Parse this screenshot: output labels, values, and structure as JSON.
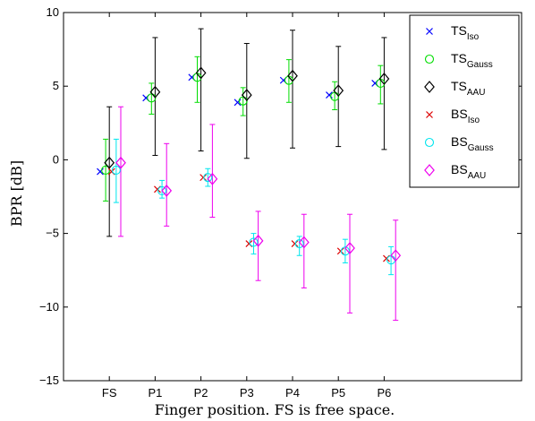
{
  "chart_data": {
    "type": "scatter",
    "title": "",
    "xlabel": "Finger position. FS is free space.",
    "ylabel": "BPR [dB]",
    "ylim": [
      -15,
      10
    ],
    "yticks": [
      -15,
      -10,
      -5,
      0,
      5,
      10
    ],
    "ytick_labels": [
      "−15",
      "−10",
      "−5",
      "0",
      "5",
      "10"
    ],
    "categories": [
      "FS",
      "P1",
      "P2",
      "P3",
      "P4",
      "P5",
      "P6"
    ],
    "xlim_categories_extra": 2,
    "grid": false,
    "legend_position": "top-right",
    "series": [
      {
        "name_main": "TS",
        "name_sub": "Iso",
        "color": "#0000ff",
        "marker": "x",
        "offset": -0.2,
        "values": [
          -0.8,
          4.2,
          5.6,
          3.9,
          5.4,
          4.4,
          5.2
        ],
        "errors": [
          null,
          null,
          null,
          null,
          null,
          null,
          null
        ]
      },
      {
        "name_main": "TS",
        "name_sub": "Gauss",
        "color": "#00dd00",
        "marker": "o",
        "offset": -0.08,
        "values": [
          -0.7,
          4.2,
          5.6,
          4.0,
          5.4,
          4.3,
          5.2
        ],
        "errors": [
          [
            -2.8,
            1.4
          ],
          [
            3.1,
            5.2
          ],
          [
            3.9,
            7.0
          ],
          [
            3.0,
            4.9
          ],
          [
            3.9,
            6.8
          ],
          [
            3.4,
            5.3
          ],
          [
            3.8,
            6.4
          ]
        ]
      },
      {
        "name_main": "TS",
        "name_sub": "AAU",
        "color": "#000000",
        "marker": "diamond",
        "offset": 0.0,
        "values": [
          -0.2,
          4.6,
          5.9,
          4.4,
          5.7,
          4.7,
          5.5
        ],
        "errors": [
          [
            -5.2,
            3.6
          ],
          [
            0.3,
            8.3
          ],
          [
            0.6,
            8.9
          ],
          [
            0.1,
            7.9
          ],
          [
            0.8,
            8.8
          ],
          [
            0.9,
            7.7
          ],
          [
            0.7,
            8.3
          ]
        ]
      },
      {
        "name_main": "BS",
        "name_sub": "Iso",
        "color": "#dd0000",
        "marker": "x",
        "offset": 0.05,
        "values": [
          -0.8,
          -2.0,
          -1.2,
          -5.7,
          -5.7,
          -6.2,
          -6.7
        ],
        "errors": [
          null,
          null,
          null,
          null,
          null,
          null,
          null
        ]
      },
      {
        "name_main": "BS",
        "name_sub": "Gauss",
        "color": "#00e5ee",
        "marker": "o",
        "offset": 0.15,
        "values": [
          -0.7,
          -2.1,
          -1.2,
          -5.6,
          -5.7,
          -6.2,
          -6.8
        ],
        "errors": [
          [
            -2.9,
            1.4
          ],
          [
            -2.6,
            -1.4
          ],
          [
            -1.8,
            -0.6
          ],
          [
            -6.4,
            -5.0
          ],
          [
            -6.5,
            -5.2
          ],
          [
            -7.0,
            -5.4
          ],
          [
            -7.8,
            -5.9
          ]
        ]
      },
      {
        "name_main": "BS",
        "name_sub": "AAU",
        "color": "#ee00ee",
        "marker": "diamond",
        "offset": 0.25,
        "values": [
          -0.2,
          -2.1,
          -1.3,
          -5.5,
          -5.6,
          -6.0,
          -6.5
        ],
        "errors": [
          [
            -5.2,
            3.6
          ],
          [
            -4.5,
            1.1
          ],
          [
            -3.9,
            2.4
          ],
          [
            -8.2,
            -3.5
          ],
          [
            -8.7,
            -3.7
          ],
          [
            -10.4,
            -3.7
          ],
          [
            -10.9,
            -4.1
          ]
        ]
      }
    ]
  }
}
